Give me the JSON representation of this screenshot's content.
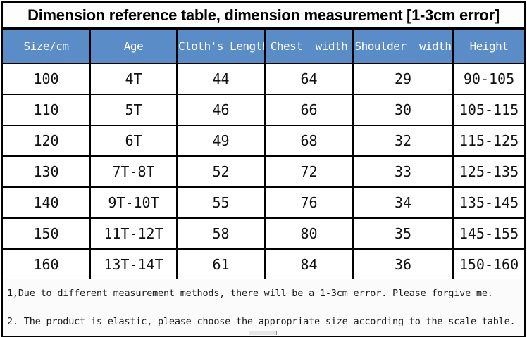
{
  "title": "Dimension reference table, dimension measurement [1-3cm error]",
  "colors": {
    "header_bg": "#5a8dc7",
    "header_text": "#ffffff",
    "grid_border": "#000000",
    "title_text": "#000000",
    "body_text": "#111111"
  },
  "table": {
    "headers": [
      "Size/cm",
      "Age",
      "Cloth's Length",
      "Chest  width",
      "Shoulder  width",
      "Height"
    ],
    "rows": [
      [
        "100",
        "4T",
        "44",
        "64",
        "29",
        "90-105"
      ],
      [
        "110",
        "5T",
        "46",
        "66",
        "30",
        "105-115"
      ],
      [
        "120",
        "6T",
        "49",
        "68",
        "32",
        "115-125"
      ],
      [
        "130",
        "7T-8T",
        "52",
        "72",
        "33",
        "125-135"
      ],
      [
        "140",
        "9T-10T",
        "55",
        "76",
        "34",
        "135-145"
      ],
      [
        "150",
        "11T-12T",
        "58",
        "80",
        "35",
        "145-155"
      ],
      [
        "160",
        "13T-14T",
        "61",
        "84",
        "36",
        "150-160"
      ]
    ]
  },
  "notes": [
    "1,Due to different measurement methods, there will be a 1-3cm error. Please forgive me.",
    "2. The product is elastic, please choose the appropriate size according to the scale table."
  ]
}
